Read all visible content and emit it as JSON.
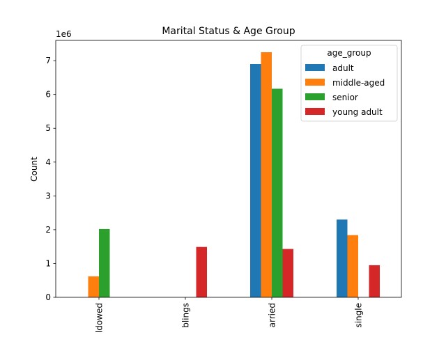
{
  "chart_data": {
    "type": "bar",
    "title": "Marital Status & Age Group",
    "xlabel": "",
    "ylabel": "Count",
    "offset_label": "1e6",
    "categories": [
      "ldowed",
      "blings",
      "arried",
      "single"
    ],
    "yticks": [
      0,
      1,
      2,
      3,
      4,
      5,
      6,
      7
    ],
    "ylim": [
      0,
      7.6
    ],
    "grid": false,
    "legend": {
      "title": "age_group",
      "placement": "top-right"
    },
    "series": [
      {
        "name": "adult",
        "color": "#1f77b4",
        "values": [
          0,
          0,
          6.9,
          2.3
        ]
      },
      {
        "name": "middle-aged",
        "color": "#ff7f0e",
        "values": [
          0.62,
          0,
          7.25,
          1.84
        ]
      },
      {
        "name": "senior",
        "color": "#2ca02c",
        "values": [
          2.02,
          0,
          6.17,
          0
        ]
      },
      {
        "name": "young adult",
        "color": "#d62728",
        "values": [
          0,
          1.49,
          1.43,
          0.95
        ]
      }
    ]
  }
}
